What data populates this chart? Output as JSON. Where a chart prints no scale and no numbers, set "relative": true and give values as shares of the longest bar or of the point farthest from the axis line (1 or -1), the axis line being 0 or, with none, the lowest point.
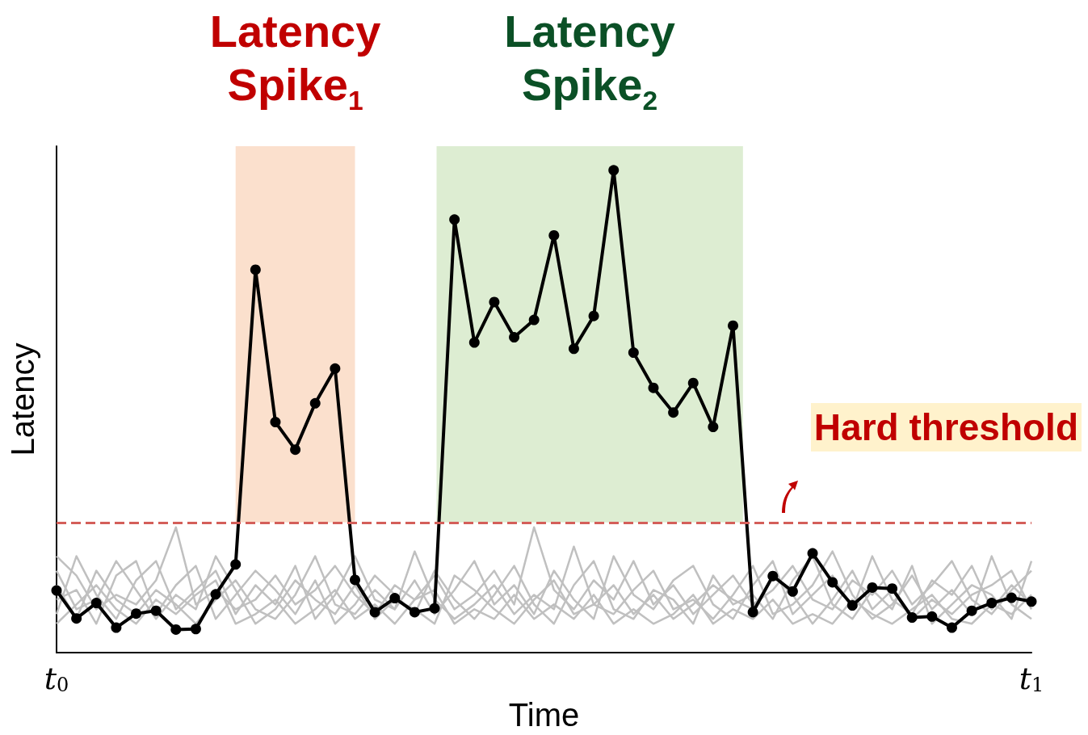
{
  "chart_data": {
    "type": "line",
    "relative": true,
    "xlabel": "Time",
    "ylabel": "Latency",
    "categories": [
      "t$_{0}$",
      null,
      null,
      null,
      null,
      null,
      null,
      null,
      null,
      null,
      null,
      null,
      null,
      null,
      null,
      null,
      null,
      null,
      null,
      null,
      null,
      null,
      null,
      null,
      null,
      null,
      null,
      null,
      null,
      null,
      null,
      null,
      null,
      null,
      null,
      null,
      null,
      null,
      null,
      null,
      null,
      null,
      null,
      null,
      null,
      null,
      null,
      null,
      null,
      "t$_{1}$"
    ],
    "series": [
      {
        "color": "#c0c0c0",
        "marker": "none",
        "values": [
          0.2,
          0.16,
          0.09,
          0.12,
          0.1,
          0.15,
          0.26,
          0.1,
          0.13,
          0.09,
          0.11,
          0.16,
          0.1,
          0.13,
          0.18,
          0.12,
          0.08,
          0.14,
          0.11,
          0.16,
          0.09,
          0.12,
          0.17,
          0.1,
          0.26,
          0.13,
          0.09,
          0.15,
          0.11,
          0.19,
          0.1,
          0.14,
          0.08,
          0.12,
          0.16,
          0.1,
          0.13,
          0.18,
          0.11,
          0.09,
          0.15,
          0.12,
          0.17,
          0.1,
          0.14,
          0.19,
          0.11,
          0.08,
          0.13,
          0.17
        ]
      },
      {
        "color": "#c0c0c0",
        "marker": "none",
        "values": [
          0.08,
          0.2,
          0.12,
          0.07,
          0.15,
          0.19,
          0.09,
          0.13,
          0.17,
          0.08,
          0.14,
          0.1,
          0.18,
          0.07,
          0.12,
          0.2,
          0.11,
          0.09,
          0.15,
          0.08,
          0.13,
          0.19,
          0.1,
          0.14,
          0.08,
          0.17,
          0.11,
          0.07,
          0.2,
          0.12,
          0.09,
          0.15,
          0.18,
          0.1,
          0.07,
          0.14,
          0.19,
          0.08,
          0.12,
          0.16,
          0.09,
          0.2,
          0.11,
          0.08,
          0.15,
          0.12,
          0.18,
          0.09,
          0.14,
          0.1
        ]
      },
      {
        "color": "#c0c0c0",
        "marker": "none",
        "values": [
          0.14,
          0.07,
          0.17,
          0.11,
          0.08,
          0.13,
          0.1,
          0.06,
          0.11,
          0.15,
          0.09,
          0.07,
          0.12,
          0.2,
          0.1,
          0.08,
          0.13,
          0.09,
          0.21,
          0.11,
          0.07,
          0.1,
          0.14,
          0.08,
          0.12,
          0.09,
          0.22,
          0.1,
          0.08,
          0.13,
          0.17,
          0.09,
          0.11,
          0.07,
          0.12,
          0.18,
          0.08,
          0.1,
          0.14,
          0.21,
          0.12,
          0.07,
          0.1,
          0.16,
          0.09,
          0.13,
          0.08,
          0.2,
          0.1,
          0.07
        ]
      },
      {
        "color": "#c0c0c0",
        "marker": "none",
        "values": [
          0.11,
          0.13,
          0.06,
          0.16,
          0.19,
          0.08,
          0.14,
          0.18,
          0.07,
          0.12,
          0.17,
          0.13,
          0.08,
          0.15,
          0.06,
          0.1,
          0.16,
          0.12,
          0.08,
          0.17,
          0.11,
          0.07,
          0.12,
          0.18,
          0.1,
          0.06,
          0.14,
          0.19,
          0.09,
          0.07,
          0.13,
          0.11,
          0.06,
          0.16,
          0.1,
          0.12,
          0.07,
          0.15,
          0.2,
          0.1,
          0.07,
          0.13,
          0.09,
          0.18,
          0.06,
          0.1,
          0.14,
          0.12,
          0.07,
          0.19
        ]
      },
      {
        "color": "#c0c0c0",
        "marker": "none",
        "values": [
          0.06,
          0.1,
          0.14,
          0.09,
          0.06,
          0.11,
          0.08,
          0.12,
          0.15,
          0.06,
          0.08,
          0.11,
          0.06,
          0.09,
          0.13,
          0.07,
          0.1,
          0.06,
          0.11,
          0.13,
          0.06,
          0.09,
          0.07,
          0.12,
          0.07,
          0.1,
          0.07,
          0.12,
          0.06,
          0.09,
          0.06,
          0.08,
          0.12,
          0.06,
          0.09,
          0.07,
          0.11,
          0.06,
          0.08,
          0.06,
          0.11,
          0.08,
          0.06,
          0.09,
          0.12,
          0.07,
          0.06,
          0.1,
          0.08,
          0.12
        ]
      },
      {
        "color": "#c0c0c0",
        "marker": "none",
        "values": [
          0.17,
          0.09,
          0.11,
          0.19,
          0.13,
          0.07,
          0.12,
          0.09,
          0.2,
          0.13,
          0.06,
          0.09,
          0.15,
          0.11,
          0.08,
          0.14,
          0.07,
          0.11,
          0.09,
          0.06,
          0.16,
          0.13,
          0.09,
          0.06,
          0.11,
          0.15,
          0.08,
          0.1,
          0.14,
          0.08,
          0.12,
          0.07,
          0.1,
          0.14,
          0.11,
          0.09,
          0.16,
          0.12,
          0.06,
          0.11,
          0.17,
          0.09,
          0.13,
          0.07,
          0.11,
          0.08,
          0.12,
          0.14,
          0.17,
          0.09
        ]
      },
      {
        "color": "#000000",
        "marker": "circle",
        "values": [
          0.129,
          0.071,
          0.103,
          0.052,
          0.081,
          0.087,
          0.048,
          0.049,
          0.121,
          0.183,
          0.794,
          0.478,
          0.421,
          0.517,
          0.589,
          0.151,
          0.084,
          0.113,
          0.084,
          0.092,
          0.898,
          0.643,
          0.727,
          0.654,
          0.69,
          0.865,
          0.63,
          0.698,
          1,
          0.622,
          0.549,
          0.498,
          0.559,
          0.468,
          0.678,
          0.084,
          0.159,
          0.127,
          0.206,
          0.146,
          0.098,
          0.135,
          0.133,
          0.073,
          0.075,
          0.052,
          0.087,
          0.103,
          0.114,
          0.106
        ]
      }
    ],
    "ref_lines": [
      {
        "axis": "y",
        "value": 0.27,
        "label": "Hard threshold",
        "color": "#d45f5a",
        "line_style": "dashed"
      }
    ],
    "annotations": [
      "Latency Spike$_{1}$",
      "Latency Spike$_{2}$"
    ]
  }
}
